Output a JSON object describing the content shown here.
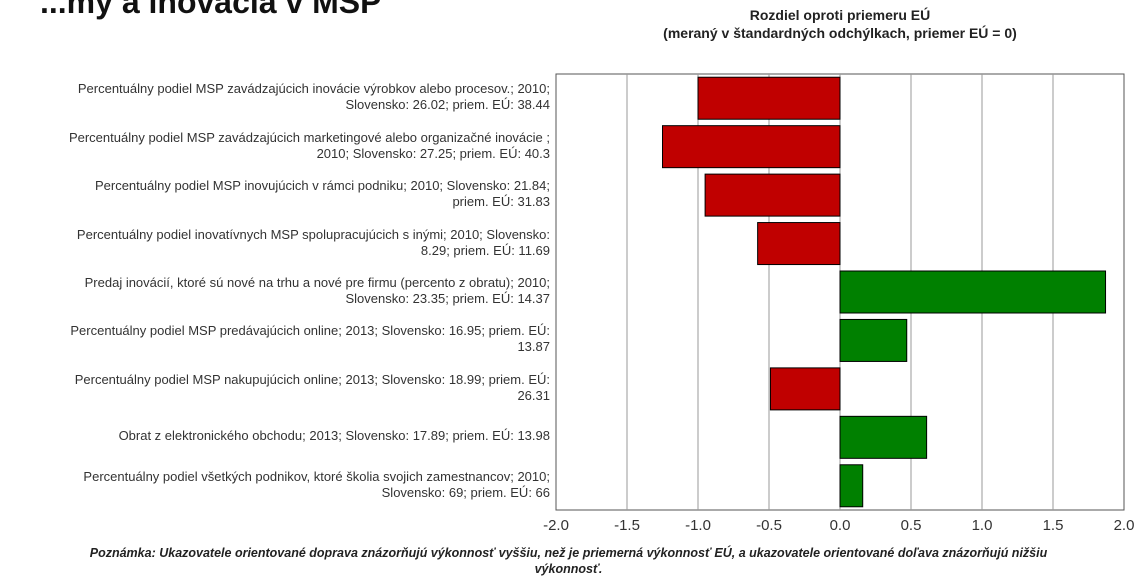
{
  "header_cut_text": "...my a inovácia v MSP",
  "chart_data": {
    "type": "bar",
    "orientation": "horizontal",
    "title_line1": "Rozdiel oproti priemeru EÚ",
    "title_line2": "(meraný v štandardných odchýlkach, priemer EÚ = 0)",
    "categories": [
      [
        "Percentuálny podiel MSP zavádzajúcich inovácie výrobkov alebo procesov.; 2010;",
        "Slovensko: 26.02; priem. EÚ: 38.44"
      ],
      [
        "Percentuálny podiel MSP zavádzajúcich marketingové alebo organizačné inovácie ;",
        "2010; Slovensko: 27.25; priem. EÚ: 40.3"
      ],
      [
        "Percentuálny podiel MSP inovujúcich v rámci podniku; 2010; Slovensko: 21.84;",
        "priem. EÚ: 31.83"
      ],
      [
        "Percentuálny podiel inovatívnych MSP spolupracujúcich s inými; 2010; Slovensko:",
        "8.29; priem. EÚ: 11.69"
      ],
      [
        "Predaj inovácií, ktoré sú nové na trhu a nové pre firmu (percento z obratu); 2010;",
        "Slovensko: 23.35; priem. EÚ: 14.37"
      ],
      [
        "Percentuálny podiel MSP predávajúcich online; 2013; Slovensko: 16.95; priem. EÚ:",
        "13.87"
      ],
      [
        "Percentuálny podiel MSP nakupujúcich online; 2013; Slovensko: 18.99; priem. EÚ:",
        "26.31"
      ],
      [
        "Obrat z elektronického obchodu; 2013; Slovensko: 17.89; priem. EÚ: 13.98"
      ],
      [
        "Percentuálny podiel všetkých podnikov, ktoré školia svojich zamestnancov; 2010;",
        "Slovensko: 69; priem. EÚ: 66"
      ]
    ],
    "values": [
      -1.0,
      -1.25,
      -0.95,
      -0.58,
      1.87,
      0.47,
      -0.49,
      0.61,
      0.16
    ],
    "xlim": [
      -2.0,
      2.0
    ],
    "xticks": [
      "-2.0",
      "-1.5",
      "-1.0",
      "-0.5",
      "0.0",
      "0.5",
      "1.0",
      "1.5",
      "2.0"
    ],
    "grid": "vertical",
    "colors": {
      "negative": "#c00000",
      "positive": "#008000",
      "border": "#000000",
      "grid": "#999999"
    }
  },
  "note_line1": "Poznámka: Ukazovatele orientované doprava znázorňujú výkonnosť vyššiu, než je priemerná výkonnosť EÚ, a ukazovatele orientované doľava znázorňujú nižšiu",
  "note_line2": "výkonnosť."
}
